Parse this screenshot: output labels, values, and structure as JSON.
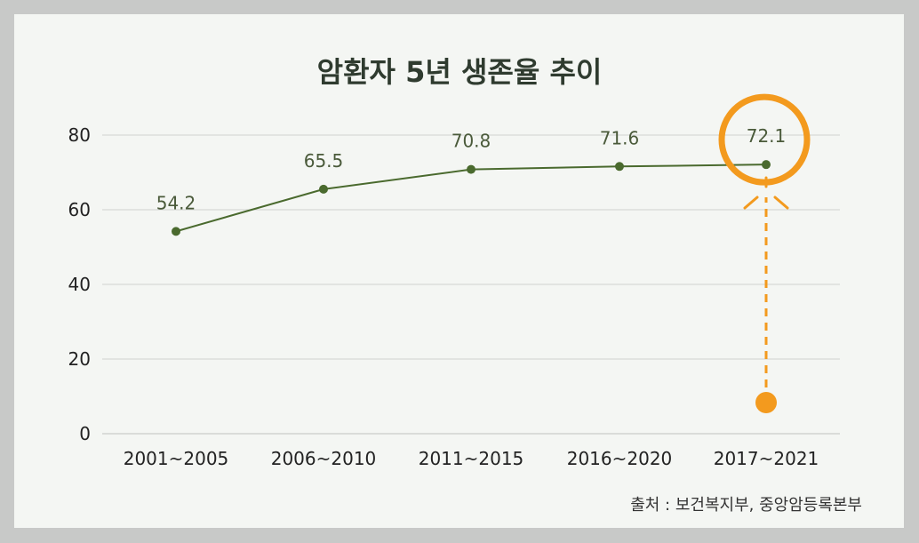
{
  "chart_data": {
    "type": "line",
    "title": "암환자 5년 생존율 추이",
    "categories": [
      "2001~2005",
      "2006~2010",
      "2011~2015",
      "2016~2020",
      "2017~2021"
    ],
    "values": [
      54.2,
      65.5,
      70.8,
      71.6,
      72.1
    ],
    "yticks": [
      "0",
      "20",
      "40",
      "60",
      "80"
    ],
    "ylim": [
      0,
      80
    ],
    "xlabel": "",
    "ylabel": "",
    "grid": true,
    "highlight_index": 4,
    "colors": {
      "line": "#4a6a2e",
      "highlight": "#f39a1e",
      "grid": "#cfd2cf"
    }
  },
  "source": "출처 : 보건복지부, 중앙암등록본부"
}
